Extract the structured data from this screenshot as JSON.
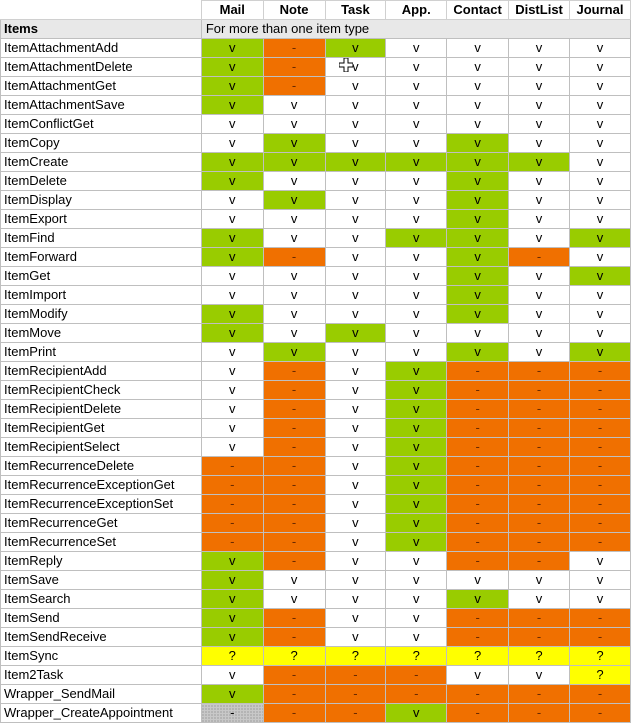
{
  "header": {
    "columns": [
      "Mail",
      "Note",
      "Task",
      "App.",
      "Contact",
      "DistList",
      "Journal"
    ]
  },
  "section": {
    "label": "Items",
    "note": "For more than one item type"
  },
  "legend_values": {
    "supported": "v",
    "unsupported": "-",
    "unknown": "?"
  },
  "colors": {
    "green": "#99cc00",
    "orange": "#f07000",
    "yellow": "#ffff00",
    "white": "#ffffff",
    "hatched": "#c8c8c8"
  },
  "rows": [
    {
      "name": "ItemAttachmentAdd",
      "cells": [
        [
          "v",
          "g"
        ],
        [
          "-",
          "o"
        ],
        [
          "v",
          "g"
        ],
        [
          "v",
          "w"
        ],
        [
          "v",
          "w"
        ],
        [
          "v",
          "w"
        ],
        [
          "v",
          "w"
        ]
      ]
    },
    {
      "name": "ItemAttachmentDelete",
      "cells": [
        [
          "v",
          "g"
        ],
        [
          "-",
          "o"
        ],
        [
          "v",
          "w"
        ],
        [
          "v",
          "w"
        ],
        [
          "v",
          "w"
        ],
        [
          "v",
          "w"
        ],
        [
          "v",
          "w"
        ]
      ]
    },
    {
      "name": "ItemAttachmentGet",
      "cells": [
        [
          "v",
          "g"
        ],
        [
          "-",
          "o"
        ],
        [
          "v",
          "w"
        ],
        [
          "v",
          "w"
        ],
        [
          "v",
          "w"
        ],
        [
          "v",
          "w"
        ],
        [
          "v",
          "w"
        ]
      ]
    },
    {
      "name": "ItemAttachmentSave",
      "cells": [
        [
          "v",
          "g"
        ],
        [
          "v",
          "w"
        ],
        [
          "v",
          "w"
        ],
        [
          "v",
          "w"
        ],
        [
          "v",
          "w"
        ],
        [
          "v",
          "w"
        ],
        [
          "v",
          "w"
        ]
      ]
    },
    {
      "name": "ItemConflictGet",
      "cells": [
        [
          "v",
          "w"
        ],
        [
          "v",
          "w"
        ],
        [
          "v",
          "w"
        ],
        [
          "v",
          "w"
        ],
        [
          "v",
          "w"
        ],
        [
          "v",
          "w"
        ],
        [
          "v",
          "w"
        ]
      ]
    },
    {
      "name": "ItemCopy",
      "cells": [
        [
          "v",
          "w"
        ],
        [
          "v",
          "g"
        ],
        [
          "v",
          "w"
        ],
        [
          "v",
          "w"
        ],
        [
          "v",
          "g"
        ],
        [
          "v",
          "w"
        ],
        [
          "v",
          "w"
        ]
      ]
    },
    {
      "name": "ItemCreate",
      "cells": [
        [
          "v",
          "g"
        ],
        [
          "v",
          "g"
        ],
        [
          "v",
          "g"
        ],
        [
          "v",
          "g"
        ],
        [
          "v",
          "g"
        ],
        [
          "v",
          "g"
        ],
        [
          "v",
          "w"
        ]
      ]
    },
    {
      "name": "ItemDelete",
      "cells": [
        [
          "v",
          "g"
        ],
        [
          "v",
          "w"
        ],
        [
          "v",
          "w"
        ],
        [
          "v",
          "w"
        ],
        [
          "v",
          "g"
        ],
        [
          "v",
          "w"
        ],
        [
          "v",
          "w"
        ]
      ]
    },
    {
      "name": "ItemDisplay",
      "cells": [
        [
          "v",
          "w"
        ],
        [
          "v",
          "g"
        ],
        [
          "v",
          "w"
        ],
        [
          "v",
          "w"
        ],
        [
          "v",
          "g"
        ],
        [
          "v",
          "w"
        ],
        [
          "v",
          "w"
        ]
      ]
    },
    {
      "name": "ItemExport",
      "cells": [
        [
          "v",
          "w"
        ],
        [
          "v",
          "w"
        ],
        [
          "v",
          "w"
        ],
        [
          "v",
          "w"
        ],
        [
          "v",
          "g"
        ],
        [
          "v",
          "w"
        ],
        [
          "v",
          "w"
        ]
      ]
    },
    {
      "name": "ItemFind",
      "cells": [
        [
          "v",
          "g"
        ],
        [
          "v",
          "w"
        ],
        [
          "v",
          "w"
        ],
        [
          "v",
          "g"
        ],
        [
          "v",
          "g"
        ],
        [
          "v",
          "w"
        ],
        [
          "v",
          "g"
        ]
      ]
    },
    {
      "name": "ItemForward",
      "cells": [
        [
          "v",
          "g"
        ],
        [
          "-",
          "o"
        ],
        [
          "v",
          "w"
        ],
        [
          "v",
          "w"
        ],
        [
          "v",
          "g"
        ],
        [
          "-",
          "o"
        ],
        [
          "v",
          "w"
        ]
      ]
    },
    {
      "name": "ItemGet",
      "cells": [
        [
          "v",
          "w"
        ],
        [
          "v",
          "w"
        ],
        [
          "v",
          "w"
        ],
        [
          "v",
          "w"
        ],
        [
          "v",
          "g"
        ],
        [
          "v",
          "w"
        ],
        [
          "v",
          "g"
        ]
      ]
    },
    {
      "name": "ItemImport",
      "cells": [
        [
          "v",
          "w"
        ],
        [
          "v",
          "w"
        ],
        [
          "v",
          "w"
        ],
        [
          "v",
          "w"
        ],
        [
          "v",
          "g"
        ],
        [
          "v",
          "w"
        ],
        [
          "v",
          "w"
        ]
      ]
    },
    {
      "name": "ItemModify",
      "cells": [
        [
          "v",
          "g"
        ],
        [
          "v",
          "w"
        ],
        [
          "v",
          "w"
        ],
        [
          "v",
          "w"
        ],
        [
          "v",
          "g"
        ],
        [
          "v",
          "w"
        ],
        [
          "v",
          "w"
        ]
      ]
    },
    {
      "name": "ItemMove",
      "cells": [
        [
          "v",
          "g"
        ],
        [
          "v",
          "w"
        ],
        [
          "v",
          "g"
        ],
        [
          "v",
          "w"
        ],
        [
          "v",
          "w"
        ],
        [
          "v",
          "w"
        ],
        [
          "v",
          "w"
        ]
      ]
    },
    {
      "name": "ItemPrint",
      "cells": [
        [
          "v",
          "w"
        ],
        [
          "v",
          "g"
        ],
        [
          "v",
          "w"
        ],
        [
          "v",
          "w"
        ],
        [
          "v",
          "g"
        ],
        [
          "v",
          "w"
        ],
        [
          "v",
          "g"
        ]
      ]
    },
    {
      "name": "ItemRecipientAdd",
      "cells": [
        [
          "v",
          "w"
        ],
        [
          "-",
          "o"
        ],
        [
          "v",
          "w"
        ],
        [
          "v",
          "g"
        ],
        [
          "-",
          "o"
        ],
        [
          "-",
          "o"
        ],
        [
          "-",
          "o"
        ]
      ]
    },
    {
      "name": "ItemRecipientCheck",
      "cells": [
        [
          "v",
          "w"
        ],
        [
          "-",
          "o"
        ],
        [
          "v",
          "w"
        ],
        [
          "v",
          "g"
        ],
        [
          "-",
          "o"
        ],
        [
          "-",
          "o"
        ],
        [
          "-",
          "o"
        ]
      ]
    },
    {
      "name": "ItemRecipientDelete",
      "cells": [
        [
          "v",
          "w"
        ],
        [
          "-",
          "o"
        ],
        [
          "v",
          "w"
        ],
        [
          "v",
          "g"
        ],
        [
          "-",
          "o"
        ],
        [
          "-",
          "o"
        ],
        [
          "-",
          "o"
        ]
      ]
    },
    {
      "name": "ItemRecipientGet",
      "cells": [
        [
          "v",
          "w"
        ],
        [
          "-",
          "o"
        ],
        [
          "v",
          "w"
        ],
        [
          "v",
          "g"
        ],
        [
          "-",
          "o"
        ],
        [
          "-",
          "o"
        ],
        [
          "-",
          "o"
        ]
      ]
    },
    {
      "name": "ItemRecipientSelect",
      "cells": [
        [
          "v",
          "w"
        ],
        [
          "-",
          "o"
        ],
        [
          "v",
          "w"
        ],
        [
          "v",
          "g"
        ],
        [
          "-",
          "o"
        ],
        [
          "-",
          "o"
        ],
        [
          "-",
          "o"
        ]
      ]
    },
    {
      "name": "ItemRecurrenceDelete",
      "cells": [
        [
          "-",
          "o"
        ],
        [
          "-",
          "o"
        ],
        [
          "v",
          "w"
        ],
        [
          "v",
          "g"
        ],
        [
          "-",
          "o"
        ],
        [
          "-",
          "o"
        ],
        [
          "-",
          "o"
        ]
      ]
    },
    {
      "name": "ItemRecurrenceExceptionGet",
      "cells": [
        [
          "-",
          "o"
        ],
        [
          "-",
          "o"
        ],
        [
          "v",
          "w"
        ],
        [
          "v",
          "g"
        ],
        [
          "-",
          "o"
        ],
        [
          "-",
          "o"
        ],
        [
          "-",
          "o"
        ]
      ]
    },
    {
      "name": "ItemRecurrenceExceptionSet",
      "cells": [
        [
          "-",
          "o"
        ],
        [
          "-",
          "o"
        ],
        [
          "v",
          "w"
        ],
        [
          "v",
          "g"
        ],
        [
          "-",
          "o"
        ],
        [
          "-",
          "o"
        ],
        [
          "-",
          "o"
        ]
      ]
    },
    {
      "name": "ItemRecurrenceGet",
      "cells": [
        [
          "-",
          "o"
        ],
        [
          "-",
          "o"
        ],
        [
          "v",
          "w"
        ],
        [
          "v",
          "g"
        ],
        [
          "-",
          "o"
        ],
        [
          "-",
          "o"
        ],
        [
          "-",
          "o"
        ]
      ]
    },
    {
      "name": "ItemRecurrenceSet",
      "cells": [
        [
          "-",
          "o"
        ],
        [
          "-",
          "o"
        ],
        [
          "v",
          "w"
        ],
        [
          "v",
          "g"
        ],
        [
          "-",
          "o"
        ],
        [
          "-",
          "o"
        ],
        [
          "-",
          "o"
        ]
      ]
    },
    {
      "name": "ItemReply",
      "cells": [
        [
          "v",
          "g"
        ],
        [
          "-",
          "o"
        ],
        [
          "v",
          "w"
        ],
        [
          "v",
          "w"
        ],
        [
          "-",
          "o"
        ],
        [
          "-",
          "o"
        ],
        [
          "v",
          "w"
        ]
      ]
    },
    {
      "name": "ItemSave",
      "cells": [
        [
          "v",
          "g"
        ],
        [
          "v",
          "w"
        ],
        [
          "v",
          "w"
        ],
        [
          "v",
          "w"
        ],
        [
          "v",
          "w"
        ],
        [
          "v",
          "w"
        ],
        [
          "v",
          "w"
        ]
      ]
    },
    {
      "name": "ItemSearch",
      "cells": [
        [
          "v",
          "g"
        ],
        [
          "v",
          "w"
        ],
        [
          "v",
          "w"
        ],
        [
          "v",
          "w"
        ],
        [
          "v",
          "g"
        ],
        [
          "v",
          "w"
        ],
        [
          "v",
          "w"
        ]
      ]
    },
    {
      "name": "ItemSend",
      "cells": [
        [
          "v",
          "g"
        ],
        [
          "-",
          "o"
        ],
        [
          "v",
          "w"
        ],
        [
          "v",
          "w"
        ],
        [
          "-",
          "o"
        ],
        [
          "-",
          "o"
        ],
        [
          "-",
          "o"
        ]
      ]
    },
    {
      "name": "ItemSendReceive",
      "cells": [
        [
          "v",
          "g"
        ],
        [
          "-",
          "o"
        ],
        [
          "v",
          "w"
        ],
        [
          "v",
          "w"
        ],
        [
          "-",
          "o"
        ],
        [
          "-",
          "o"
        ],
        [
          "-",
          "o"
        ]
      ]
    },
    {
      "name": "ItemSync",
      "cells": [
        [
          "?",
          "y"
        ],
        [
          "?",
          "y"
        ],
        [
          "?",
          "y"
        ],
        [
          "?",
          "y"
        ],
        [
          "?",
          "y"
        ],
        [
          "?",
          "y"
        ],
        [
          "?",
          "y"
        ]
      ]
    },
    {
      "name": "Item2Task",
      "cells": [
        [
          "v",
          "w"
        ],
        [
          "-",
          "o"
        ],
        [
          "-",
          "o"
        ],
        [
          "-",
          "o"
        ],
        [
          "v",
          "w"
        ],
        [
          "v",
          "w"
        ],
        [
          "?",
          "y"
        ]
      ]
    },
    {
      "name": "Wrapper_SendMail",
      "cells": [
        [
          "v",
          "g"
        ],
        [
          "-",
          "o"
        ],
        [
          "-",
          "o"
        ],
        [
          "-",
          "o"
        ],
        [
          "-",
          "o"
        ],
        [
          "-",
          "o"
        ],
        [
          "-",
          "o"
        ]
      ]
    },
    {
      "name": "Wrapper_CreateAppointment",
      "cells": [
        [
          "-",
          "h"
        ],
        [
          "-",
          "o"
        ],
        [
          "-",
          "o"
        ],
        [
          "v",
          "g"
        ],
        [
          "-",
          "o"
        ],
        [
          "-",
          "o"
        ],
        [
          "-",
          "o"
        ]
      ]
    }
  ]
}
